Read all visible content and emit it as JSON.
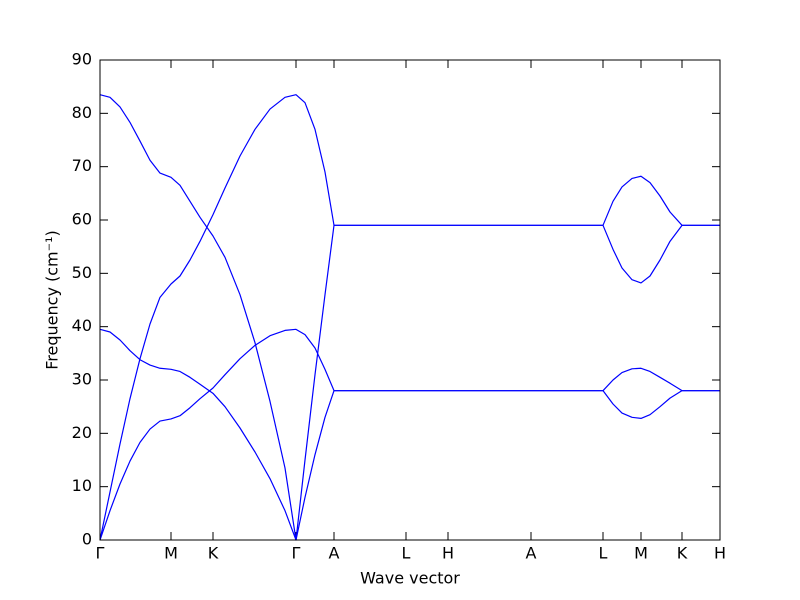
{
  "chart_data": {
    "type": "line",
    "x_label": "Wave vector",
    "y_label": "Frequency (cm⁻¹)",
    "xlim": [
      0,
      6.2
    ],
    "ylim": [
      0,
      90
    ],
    "xticks": [
      {
        "value": 0,
        "label": "Γ"
      },
      {
        "value": 0.71,
        "label": "M"
      },
      {
        "value": 1.13,
        "label": "K"
      },
      {
        "value": 1.96,
        "label": "Γ"
      },
      {
        "value": 2.34,
        "label": "A"
      },
      {
        "value": 3.06,
        "label": "L"
      },
      {
        "value": 3.48,
        "label": "H"
      },
      {
        "value": 4.31,
        "label": "A"
      },
      {
        "value": 5.03,
        "label": "L"
      },
      {
        "value": 5.41,
        "label": "M"
      },
      {
        "value": 5.82,
        "label": "K"
      },
      {
        "value": 6.2,
        "label": "H"
      }
    ],
    "yticks": [
      0,
      10,
      20,
      30,
      40,
      50,
      60,
      70,
      80,
      90
    ],
    "x": [
      0,
      0.1,
      0.2,
      0.3,
      0.4,
      0.5,
      0.6,
      0.71,
      0.8,
      0.9,
      1.0,
      1.13,
      1.25,
      1.4,
      1.55,
      1.7,
      1.85,
      1.96,
      2.05,
      2.15,
      2.25,
      2.34,
      3.06,
      3.48,
      4.31,
      5.03,
      5.13,
      5.22,
      5.32,
      5.41,
      5.5,
      5.6,
      5.7,
      5.82,
      6.2
    ],
    "series": [
      {
        "color": "#0000ff",
        "values": [
          83.5,
          83.0,
          81.2,
          78.3,
          74.8,
          71.2,
          68.8,
          68.0,
          66.5,
          63.5,
          60.5,
          57,
          53,
          46,
          37,
          26,
          13.5,
          0,
          15,
          31,
          46,
          59,
          59,
          59,
          59,
          59,
          63.5,
          66.2,
          67.8,
          68.2,
          67,
          64.5,
          61.5,
          59,
          59
        ]
      },
      {
        "color": "#0000ff",
        "values": [
          0,
          9,
          18,
          26.5,
          34,
          40.5,
          45.5,
          48,
          49.5,
          52.5,
          56,
          61,
          66,
          72,
          77,
          80.8,
          83,
          83.5,
          82,
          77,
          69,
          59,
          59,
          59,
          59,
          59,
          54.5,
          51,
          48.8,
          48.2,
          49.5,
          52.5,
          56,
          59,
          59
        ]
      },
      {
        "color": "#0000ff",
        "values": [
          39.5,
          39,
          37.5,
          35.5,
          33.8,
          32.8,
          32.2,
          32.0,
          31.6,
          30.5,
          29.2,
          27.5,
          25,
          21,
          16.5,
          11.5,
          5.5,
          0,
          8,
          16,
          23,
          28,
          28,
          28,
          28,
          28,
          30,
          31.4,
          32.1,
          32.2,
          31.6,
          30.5,
          29.4,
          28,
          28
        ]
      },
      {
        "color": "#0000ff",
        "values": [
          0,
          5.5,
          10.5,
          14.8,
          18.3,
          20.8,
          22.3,
          22.7,
          23.3,
          24.8,
          26.5,
          28.5,
          31,
          34,
          36.5,
          38.3,
          39.3,
          39.5,
          38.5,
          36,
          32,
          28,
          28,
          28,
          28,
          28,
          25.5,
          23.8,
          23,
          22.8,
          23.5,
          25,
          26.6,
          28,
          28
        ]
      }
    ]
  }
}
